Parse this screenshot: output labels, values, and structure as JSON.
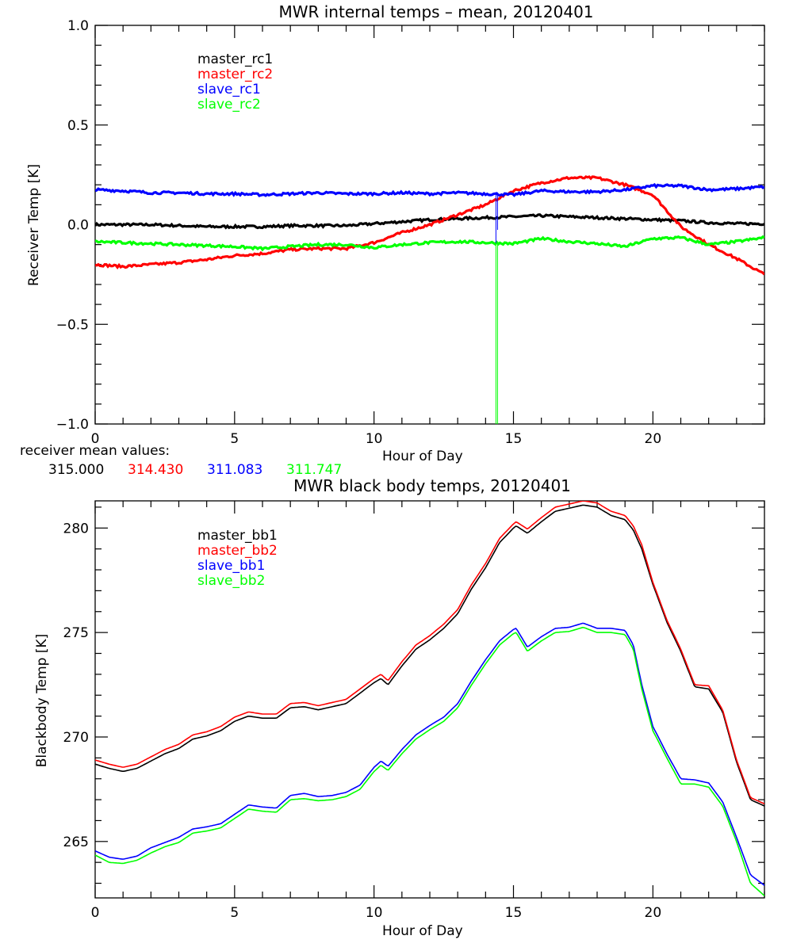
{
  "chart_data": [
    {
      "type": "line",
      "title": "MWR internal temps – mean, 20120401",
      "xlabel": "Hour of Day",
      "ylabel": "Receiver Temp [K]",
      "xlim": [
        0,
        24
      ],
      "ylim": [
        -1.0,
        1.0
      ],
      "xticks": [
        0,
        5,
        10,
        15,
        20
      ],
      "xtick_labels": [
        "0",
        "5",
        "10",
        "15",
        "20"
      ],
      "yticks": [
        -1.0,
        -0.5,
        0.0,
        0.5,
        1.0
      ],
      "ytick_labels": [
        "−1.0",
        "−0.5",
        "0.0",
        "0.5",
        "1.0"
      ],
      "x_minor_step": 1,
      "y_minor_step": 0.1,
      "grid": false,
      "legend_position": "top-left",
      "spike_hour": 14.4,
      "x": [
        0,
        1,
        2,
        3,
        4,
        5,
        6,
        7,
        8,
        9,
        10,
        11,
        12,
        13,
        14,
        15,
        16,
        17,
        18,
        19,
        20,
        21,
        22,
        23,
        24
      ],
      "series": [
        {
          "name": "master_rc1",
          "color": "#000000",
          "values": [
            0.0,
            0.0,
            0.0,
            -0.005,
            -0.01,
            -0.01,
            -0.01,
            -0.005,
            -0.005,
            -0.005,
            0.005,
            0.015,
            0.025,
            0.03,
            0.035,
            0.04,
            0.045,
            0.04,
            0.035,
            0.03,
            0.025,
            0.02,
            0.01,
            0.005,
            0.005
          ]
        },
        {
          "name": "master_rc2",
          "color": "#ff0000",
          "values": [
            -0.2,
            -0.21,
            -0.2,
            -0.19,
            -0.175,
            -0.155,
            -0.145,
            -0.125,
            -0.12,
            -0.12,
            -0.09,
            -0.04,
            0.0,
            0.05,
            0.1,
            0.17,
            0.21,
            0.235,
            0.235,
            0.2,
            0.15,
            -0.01,
            -0.1,
            -0.17,
            -0.25
          ]
        },
        {
          "name": "slave_rc1",
          "color": "#0000ff",
          "values": [
            0.175,
            0.17,
            0.16,
            0.16,
            0.155,
            0.155,
            0.15,
            0.155,
            0.16,
            0.155,
            0.155,
            0.16,
            0.155,
            0.16,
            0.155,
            0.15,
            0.17,
            0.165,
            0.165,
            0.175,
            0.195,
            0.195,
            0.175,
            0.18,
            0.19
          ]
        },
        {
          "name": "slave_rc2",
          "color": "#00ff00",
          "values": [
            -0.085,
            -0.09,
            -0.095,
            -0.1,
            -0.105,
            -0.11,
            -0.12,
            -0.11,
            -0.1,
            -0.1,
            -0.115,
            -0.1,
            -0.09,
            -0.085,
            -0.09,
            -0.095,
            -0.07,
            -0.085,
            -0.095,
            -0.11,
            -0.07,
            -0.065,
            -0.1,
            -0.085,
            -0.065
          ]
        }
      ]
    },
    {
      "type": "line",
      "title": "MWR black body temps, 20120401",
      "xlabel": "Hour of Day",
      "ylabel": "Blackbody Temp [K]",
      "xlim": [
        0,
        24
      ],
      "ylim": [
        262.3,
        281.3
      ],
      "xticks": [
        0,
        5,
        10,
        15,
        20
      ],
      "xtick_labels": [
        "0",
        "5",
        "10",
        "15",
        "20"
      ],
      "yticks": [
        265,
        270,
        275,
        280
      ],
      "ytick_labels": [
        "265",
        "270",
        "275",
        "280"
      ],
      "x_minor_step": 1,
      "y_minor_step": 1,
      "grid": false,
      "legend_position": "top-left",
      "x": [
        0,
        0.5,
        1,
        1.5,
        2,
        2.5,
        3,
        3.5,
        4,
        4.5,
        5,
        5.5,
        6,
        6.5,
        7,
        7.5,
        8,
        8.5,
        9,
        9.5,
        10,
        10.25,
        10.5,
        11,
        11.5,
        12,
        12.5,
        13,
        13.5,
        14,
        14.5,
        15,
        15.1,
        15.5,
        16,
        16.5,
        17,
        17.5,
        18,
        18.5,
        19,
        19.3,
        19.6,
        20,
        20.5,
        21,
        21.5,
        22,
        22.5,
        23,
        23.5,
        24
      ],
      "series": [
        {
          "name": "master_bb1",
          "color": "#000000",
          "values": [
            268.7,
            268.5,
            268.35,
            268.5,
            268.85,
            269.2,
            269.45,
            269.9,
            270.05,
            270.3,
            270.75,
            271.0,
            270.9,
            270.9,
            271.4,
            271.45,
            271.3,
            271.45,
            271.6,
            272.1,
            272.6,
            272.8,
            272.5,
            273.4,
            274.2,
            274.65,
            275.2,
            275.9,
            277.1,
            278.1,
            279.3,
            280.0,
            280.1,
            279.75,
            280.3,
            280.8,
            280.95,
            281.1,
            281.0,
            280.6,
            280.4,
            279.9,
            279.0,
            277.3,
            275.5,
            274.1,
            272.4,
            272.3,
            271.2,
            268.8,
            267.0,
            266.7
          ]
        },
        {
          "name": "master_bb2",
          "color": "#ff0000",
          "values": [
            268.9,
            268.7,
            268.55,
            268.7,
            269.05,
            269.4,
            269.65,
            270.1,
            270.25,
            270.5,
            270.95,
            271.2,
            271.1,
            271.1,
            271.6,
            271.65,
            271.5,
            271.65,
            271.8,
            272.3,
            272.8,
            273.0,
            272.7,
            273.6,
            274.4,
            274.85,
            275.4,
            276.1,
            277.3,
            278.3,
            279.5,
            280.2,
            280.3,
            279.95,
            280.5,
            281.0,
            281.15,
            281.3,
            281.2,
            280.8,
            280.6,
            280.1,
            279.2,
            277.4,
            275.6,
            274.2,
            272.5,
            272.45,
            271.3,
            268.9,
            267.1,
            266.8
          ]
        },
        {
          "name": "slave_bb1",
          "color": "#0000ff",
          "values": [
            264.55,
            264.25,
            264.15,
            264.3,
            264.7,
            264.95,
            265.2,
            265.6,
            265.7,
            265.85,
            266.3,
            266.75,
            266.65,
            266.6,
            267.2,
            267.3,
            267.15,
            267.2,
            267.35,
            267.7,
            268.55,
            268.85,
            268.6,
            269.4,
            270.1,
            270.55,
            270.95,
            271.6,
            272.7,
            273.7,
            274.6,
            275.15,
            275.2,
            274.3,
            274.8,
            275.2,
            275.25,
            275.45,
            275.2,
            275.2,
            275.1,
            274.4,
            272.5,
            270.5,
            269.2,
            268.0,
            267.95,
            267.8,
            266.9,
            265.2,
            263.4,
            262.9
          ]
        },
        {
          "name": "slave_bb2",
          "color": "#00ff00",
          "values": [
            264.35,
            264.0,
            263.95,
            264.1,
            264.45,
            264.75,
            264.95,
            265.4,
            265.5,
            265.65,
            266.1,
            266.55,
            266.45,
            266.4,
            267.0,
            267.05,
            266.95,
            267.0,
            267.15,
            267.5,
            268.35,
            268.65,
            268.4,
            269.2,
            269.9,
            270.35,
            270.75,
            271.4,
            272.5,
            273.5,
            274.4,
            274.95,
            275.0,
            274.1,
            274.6,
            275.0,
            275.05,
            275.25,
            275.0,
            275.0,
            274.9,
            274.2,
            272.3,
            270.3,
            269.0,
            267.75,
            267.75,
            267.6,
            266.7,
            265.0,
            263.0,
            262.4
          ]
        }
      ]
    }
  ],
  "receiver_mean": {
    "label": "receiver mean values:",
    "values": [
      {
        "text": "315.000",
        "color": "#000000"
      },
      {
        "text": "314.430",
        "color": "#ff0000"
      },
      {
        "text": "311.083",
        "color": "#0000ff"
      },
      {
        "text": "311.747",
        "color": "#00ff00"
      }
    ]
  }
}
